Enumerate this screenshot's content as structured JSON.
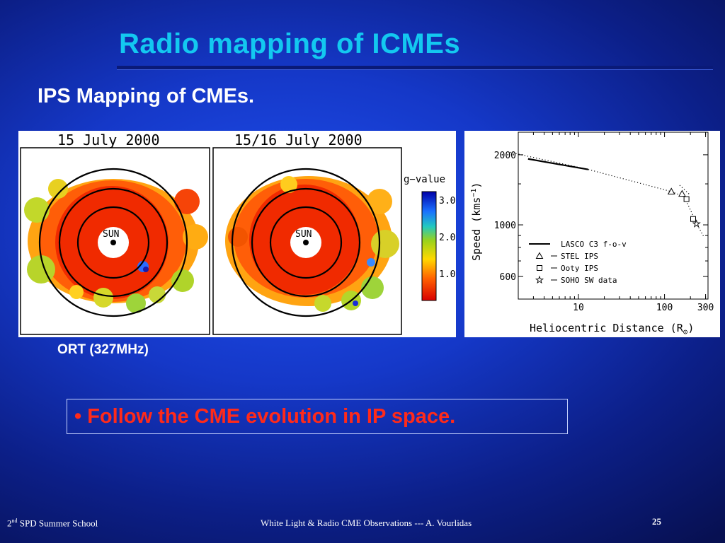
{
  "slide": {
    "title": "Radio mapping of ICMEs",
    "subtitle": "IPS Mapping of CMEs.",
    "caption": "ORT (327MHz)",
    "bullet_symbol": "•",
    "bullet_text": "Follow the CME evolution in IP space.",
    "colors": {
      "title": "#13c8f0",
      "bullet": "#ff2a1a"
    }
  },
  "footer": {
    "left_prefix": "2",
    "left_sup": "nd",
    "left_rest": " SPD Summer School",
    "center": "White Light & Radio CME Observations --- A. Vourlidas",
    "page": "25"
  },
  "maps": {
    "left_title": "15 July 2000",
    "right_title": "15/16 July 2000",
    "sun_label": "SUN",
    "colorbar_label": "g−value",
    "colorbar_ticks": [
      "3.0",
      "2.0",
      "1.0"
    ]
  },
  "chart_data": {
    "type": "scatter",
    "xscale": "log",
    "yscale": "log",
    "xlim": [
      2,
      320
    ],
    "ylim": [
      480,
      2500
    ],
    "xticks": [
      10,
      100,
      300
    ],
    "xtick_labels": [
      "10",
      "100",
      "300"
    ],
    "yticks": [
      600,
      1000,
      2000
    ],
    "ytick_labels": [
      "600",
      "1000",
      "2000"
    ],
    "xlabel": "Heliocentric Distance (R",
    "xlabel_sub": "⊙",
    "xlabel_end": ")",
    "ylabel": "Speed (kms",
    "ylabel_sup": "−1",
    "ylabel_end": ")",
    "legend_position": "bottom-left",
    "series": [
      {
        "name": "LASCO C3 f-o-v",
        "marker": "line",
        "x": [
          2.6,
          13
        ],
        "y": [
          1920,
          1730
        ]
      },
      {
        "name": "STEL IPS",
        "marker": "triangle",
        "x": [
          120,
          160
        ],
        "y": [
          1390,
          1360
        ]
      },
      {
        "name": "Ooty IPS",
        "marker": "square",
        "x": [
          180,
          215
        ],
        "y": [
          1290,
          1060
        ]
      },
      {
        "name": "SOHO SW data",
        "marker": "star",
        "x": [
          235
        ],
        "y": [
          1010
        ]
      }
    ],
    "fit_line": {
      "x": [
        1.6,
        13,
        120,
        170,
        240,
        290
      ],
      "y": [
        2050,
        1730,
        1390,
        1320,
        1000,
        880
      ]
    },
    "fit_line_upper": {
      "x": [
        150,
        200
      ],
      "y": [
        1480,
        1340
      ]
    }
  }
}
